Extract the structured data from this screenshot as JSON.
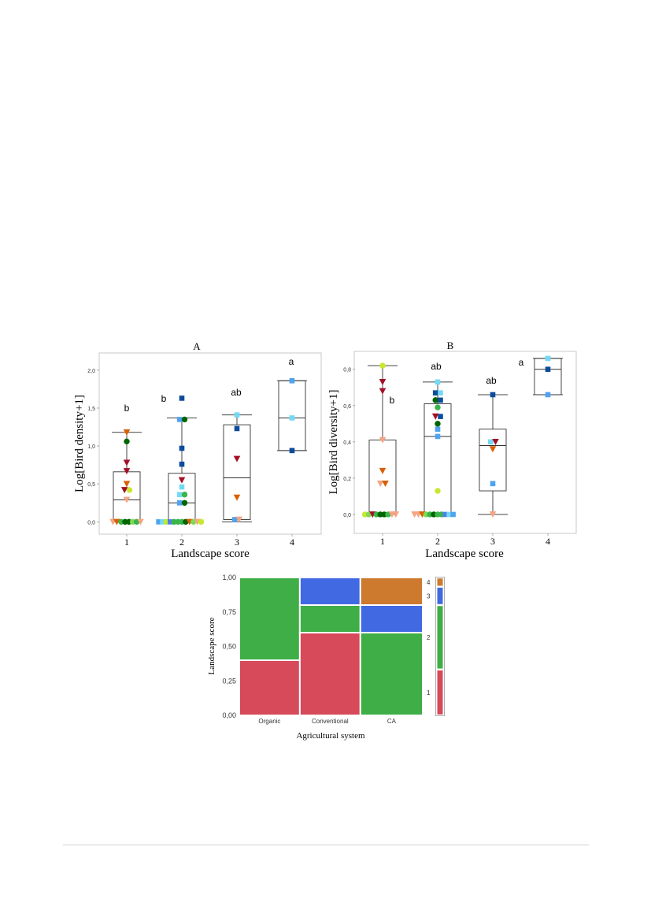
{
  "chart_data": [
    {
      "type": "box",
      "title": "A",
      "xlabel": "Landscape score",
      "ylabel": "Log[Bird density+1]",
      "categories": [
        "1",
        "2",
        "3",
        "4"
      ],
      "ytick_labels": [
        "0,0",
        "0,5",
        "1,0",
        "1,5",
        "2,0"
      ],
      "ylim": [
        -0.1,
        2.05
      ],
      "group_letters": [
        "b",
        "b",
        "ab",
        "a"
      ],
      "boxes": [
        {
          "q1": 0.0,
          "median": 0.29,
          "q3": 0.66,
          "whisker_low": 0.0,
          "whisker_high": 1.18
        },
        {
          "q1": 0.0,
          "median": 0.25,
          "q3": 0.64,
          "whisker_low": 0.0,
          "whisker_high": 1.37
        },
        {
          "q1": 0.03,
          "median": 0.58,
          "q3": 1.28,
          "whisker_low": 0.0,
          "whisker_high": 1.41
        },
        {
          "q1": 0.94,
          "median": 1.37,
          "q3": 1.86,
          "whisker_low": 0.94,
          "whisker_high": 1.86
        }
      ],
      "points": [
        {
          "x": 1,
          "dx": -0.25,
          "y": 0.0,
          "shape": "tri",
          "color": "#f4a582"
        },
        {
          "x": 1,
          "dx": -0.18,
          "y": 0.0,
          "shape": "tri",
          "color": "#d95f02"
        },
        {
          "x": 1,
          "dx": -0.1,
          "y": 0.0,
          "shape": "circle",
          "color": "#39b54a"
        },
        {
          "x": 1,
          "dx": -0.03,
          "y": 0.0,
          "shape": "circle",
          "color": "#006400"
        },
        {
          "x": 1,
          "dx": 0.04,
          "y": 0.0,
          "shape": "circle",
          "color": "#006400"
        },
        {
          "x": 1,
          "dx": 0.11,
          "y": 0.0,
          "shape": "circle",
          "color": "#7ed957"
        },
        {
          "x": 1,
          "dx": 0.18,
          "y": 0.0,
          "shape": "circle",
          "color": "#39b54a"
        },
        {
          "x": 1,
          "dx": 0.25,
          "y": 0.0,
          "shape": "tri",
          "color": "#f4a582"
        },
        {
          "x": 1,
          "dx": 0.0,
          "y": 0.29,
          "shape": "tri",
          "color": "#f4a582"
        },
        {
          "x": 1,
          "dx": -0.04,
          "y": 0.42,
          "shape": "tri",
          "color": "#a50f26"
        },
        {
          "x": 1,
          "dx": 0.05,
          "y": 0.42,
          "shape": "circle",
          "color": "#c6e82e"
        },
        {
          "x": 1,
          "dx": 0.0,
          "y": 0.5,
          "shape": "tri",
          "color": "#d95f02"
        },
        {
          "x": 1,
          "dx": 0.0,
          "y": 0.67,
          "shape": "tri",
          "color": "#a50f26"
        },
        {
          "x": 1,
          "dx": 0.0,
          "y": 0.78,
          "shape": "tri",
          "color": "#a50f26"
        },
        {
          "x": 1,
          "dx": 0.0,
          "y": 1.06,
          "shape": "circle",
          "color": "#006400"
        },
        {
          "x": 1,
          "dx": 0.0,
          "y": 1.18,
          "shape": "tri",
          "color": "#d95f02"
        },
        {
          "x": 2,
          "dx": -0.42,
          "y": 0.0,
          "shape": "square",
          "color": "#4fa3f0"
        },
        {
          "x": 2,
          "dx": -0.35,
          "y": 0.0,
          "shape": "square",
          "color": "#73d9f5"
        },
        {
          "x": 2,
          "dx": -0.28,
          "y": 0.0,
          "shape": "circle",
          "color": "#c6e82e"
        },
        {
          "x": 2,
          "dx": -0.21,
          "y": 0.0,
          "shape": "square",
          "color": "#4f7fe8"
        },
        {
          "x": 2,
          "dx": -0.14,
          "y": 0.0,
          "shape": "circle",
          "color": "#39b54a"
        },
        {
          "x": 2,
          "dx": -0.07,
          "y": 0.0,
          "shape": "circle",
          "color": "#39b54a"
        },
        {
          "x": 2,
          "dx": 0.0,
          "y": 0.0,
          "shape": "circle",
          "color": "#39b54a"
        },
        {
          "x": 2,
          "dx": 0.07,
          "y": 0.0,
          "shape": "circle",
          "color": "#006400"
        },
        {
          "x": 2,
          "dx": 0.14,
          "y": 0.0,
          "shape": "tri",
          "color": "#d95f02"
        },
        {
          "x": 2,
          "dx": 0.21,
          "y": 0.0,
          "shape": "circle",
          "color": "#7ed957"
        },
        {
          "x": 2,
          "dx": 0.28,
          "y": 0.0,
          "shape": "tri",
          "color": "#f4a582"
        },
        {
          "x": 2,
          "dx": 0.35,
          "y": 0.0,
          "shape": "circle",
          "color": "#c6e82e"
        },
        {
          "x": 2,
          "dx": -0.04,
          "y": 0.25,
          "shape": "square",
          "color": "#4fa3f0"
        },
        {
          "x": 2,
          "dx": 0.05,
          "y": 0.25,
          "shape": "circle",
          "color": "#006400"
        },
        {
          "x": 2,
          "dx": -0.04,
          "y": 0.36,
          "shape": "square",
          "color": "#73d9f5"
        },
        {
          "x": 2,
          "dx": 0.05,
          "y": 0.36,
          "shape": "circle",
          "color": "#39b54a"
        },
        {
          "x": 2,
          "dx": 0.0,
          "y": 0.46,
          "shape": "square",
          "color": "#73d9f5"
        },
        {
          "x": 2,
          "dx": 0.0,
          "y": 0.55,
          "shape": "tri",
          "color": "#a50f26"
        },
        {
          "x": 2,
          "dx": 0.0,
          "y": 0.76,
          "shape": "square",
          "color": "#0d4c9c"
        },
        {
          "x": 2,
          "dx": 0.0,
          "y": 0.97,
          "shape": "square",
          "color": "#0d4c9c"
        },
        {
          "x": 2,
          "dx": -0.04,
          "y": 1.35,
          "shape": "square",
          "color": "#4fa3f0"
        },
        {
          "x": 2,
          "dx": 0.05,
          "y": 1.35,
          "shape": "circle",
          "color": "#006400"
        },
        {
          "x": 2,
          "dx": 0.0,
          "y": 1.63,
          "shape": "square",
          "color": "#0d4c9c"
        },
        {
          "x": 3,
          "dx": -0.04,
          "y": 0.03,
          "shape": "square",
          "color": "#4fa3f0"
        },
        {
          "x": 3,
          "dx": 0.04,
          "y": 0.03,
          "shape": "tri",
          "color": "#f4a582"
        },
        {
          "x": 3,
          "dx": 0.0,
          "y": 0.32,
          "shape": "tri",
          "color": "#d95f02"
        },
        {
          "x": 3,
          "dx": 0.0,
          "y": 0.83,
          "shape": "tri",
          "color": "#a50f26"
        },
        {
          "x": 3,
          "dx": 0.0,
          "y": 1.23,
          "shape": "square",
          "color": "#0d4c9c"
        },
        {
          "x": 3,
          "dx": 0.0,
          "y": 1.41,
          "shape": "square",
          "color": "#73d9f5"
        },
        {
          "x": 4,
          "dx": 0.0,
          "y": 0.94,
          "shape": "square",
          "color": "#0d4c9c"
        },
        {
          "x": 4,
          "dx": 0.0,
          "y": 1.37,
          "shape": "square",
          "color": "#73d9f5"
        },
        {
          "x": 4,
          "dx": 0.0,
          "y": 1.86,
          "shape": "square",
          "color": "#4fa3f0"
        }
      ]
    },
    {
      "type": "box",
      "title": "B",
      "xlabel": "Landscape score",
      "ylabel": "Log[Bird diversity+1]",
      "categories": [
        "1",
        "2",
        "3",
        "4"
      ],
      "ytick_labels": [
        "0,0",
        "0,2",
        "0,4",
        "0,6",
        "0,8"
      ],
      "ylim": [
        -0.1,
        0.89
      ],
      "group_letters": [
        "b",
        "ab",
        "ab",
        "a"
      ],
      "boxes": [
        {
          "q1": 0.0,
          "median": 0.0,
          "q3": 0.41,
          "whisker_low": 0.0,
          "whisker_high": 0.82
        },
        {
          "q1": 0.0,
          "median": 0.43,
          "q3": 0.61,
          "whisker_low": 0.0,
          "whisker_high": 0.73
        },
        {
          "q1": 0.13,
          "median": 0.38,
          "q3": 0.47,
          "whisker_low": 0.0,
          "whisker_high": 0.66
        },
        {
          "q1": 0.66,
          "median": 0.8,
          "q3": 0.86,
          "whisker_low": 0.66,
          "whisker_high": 0.86
        }
      ],
      "points": [
        {
          "x": 1,
          "dx": -0.32,
          "y": 0.0,
          "shape": "circle",
          "color": "#c6e82e"
        },
        {
          "x": 1,
          "dx": -0.25,
          "y": 0.0,
          "shape": "circle",
          "color": "#7ed957"
        },
        {
          "x": 1,
          "dx": -0.18,
          "y": 0.0,
          "shape": "tri",
          "color": "#a50f26"
        },
        {
          "x": 1,
          "dx": -0.11,
          "y": 0.0,
          "shape": "circle",
          "color": "#39b54a"
        },
        {
          "x": 1,
          "dx": -0.04,
          "y": 0.0,
          "shape": "circle",
          "color": "#006400"
        },
        {
          "x": 1,
          "dx": 0.03,
          "y": 0.0,
          "shape": "circle",
          "color": "#006400"
        },
        {
          "x": 1,
          "dx": 0.1,
          "y": 0.0,
          "shape": "circle",
          "color": "#39b54a"
        },
        {
          "x": 1,
          "dx": 0.17,
          "y": 0.0,
          "shape": "tri",
          "color": "#f4a582"
        },
        {
          "x": 1,
          "dx": 0.24,
          "y": 0.0,
          "shape": "tri",
          "color": "#f4a582"
        },
        {
          "x": 1,
          "dx": -0.04,
          "y": 0.17,
          "shape": "tri",
          "color": "#f4a582"
        },
        {
          "x": 1,
          "dx": 0.05,
          "y": 0.17,
          "shape": "tri",
          "color": "#d95f02"
        },
        {
          "x": 1,
          "dx": 0.0,
          "y": 0.24,
          "shape": "tri",
          "color": "#d95f02"
        },
        {
          "x": 1,
          "dx": 0.0,
          "y": 0.41,
          "shape": "tri",
          "color": "#f4a582"
        },
        {
          "x": 1,
          "dx": 0.0,
          "y": 0.68,
          "shape": "tri",
          "color": "#a50f26"
        },
        {
          "x": 1,
          "dx": 0.0,
          "y": 0.73,
          "shape": "tri",
          "color": "#a50f26"
        },
        {
          "x": 1,
          "dx": 0.0,
          "y": 0.82,
          "shape": "circle",
          "color": "#c6e82e"
        },
        {
          "x": 2,
          "dx": -0.42,
          "y": 0.0,
          "shape": "tri",
          "color": "#f4a582"
        },
        {
          "x": 2,
          "dx": -0.35,
          "y": 0.0,
          "shape": "tri",
          "color": "#f4a582"
        },
        {
          "x": 2,
          "dx": -0.28,
          "y": 0.0,
          "shape": "tri",
          "color": "#d95f02"
        },
        {
          "x": 2,
          "dx": -0.21,
          "y": 0.0,
          "shape": "circle",
          "color": "#7ed957"
        },
        {
          "x": 2,
          "dx": -0.14,
          "y": 0.0,
          "shape": "circle",
          "color": "#39b54a"
        },
        {
          "x": 2,
          "dx": -0.07,
          "y": 0.0,
          "shape": "circle",
          "color": "#006400"
        },
        {
          "x": 2,
          "dx": 0.0,
          "y": 0.0,
          "shape": "circle",
          "color": "#39b54a"
        },
        {
          "x": 2,
          "dx": 0.07,
          "y": 0.0,
          "shape": "circle",
          "color": "#39b54a"
        },
        {
          "x": 2,
          "dx": 0.14,
          "y": 0.0,
          "shape": "square",
          "color": "#4f7fe8"
        },
        {
          "x": 2,
          "dx": 0.21,
          "y": 0.0,
          "shape": "square",
          "color": "#73d9f5"
        },
        {
          "x": 2,
          "dx": 0.28,
          "y": 0.0,
          "shape": "square",
          "color": "#4fa3f0"
        },
        {
          "x": 2,
          "dx": 0.0,
          "y": 0.13,
          "shape": "circle",
          "color": "#c6e82e"
        },
        {
          "x": 2,
          "dx": 0.0,
          "y": 0.43,
          "shape": "square",
          "color": "#4fa3f0"
        },
        {
          "x": 2,
          "dx": 0.0,
          "y": 0.47,
          "shape": "square",
          "color": "#4fa3f0"
        },
        {
          "x": 2,
          "dx": 0.0,
          "y": 0.5,
          "shape": "circle",
          "color": "#006400"
        },
        {
          "x": 2,
          "dx": -0.04,
          "y": 0.54,
          "shape": "tri",
          "color": "#a50f26"
        },
        {
          "x": 2,
          "dx": 0.05,
          "y": 0.54,
          "shape": "square",
          "color": "#0d4c9c"
        },
        {
          "x": 2,
          "dx": 0.0,
          "y": 0.59,
          "shape": "circle",
          "color": "#39b54a"
        },
        {
          "x": 2,
          "dx": -0.04,
          "y": 0.63,
          "shape": "circle",
          "color": "#006400"
        },
        {
          "x": 2,
          "dx": 0.05,
          "y": 0.63,
          "shape": "square",
          "color": "#0d4c9c"
        },
        {
          "x": 2,
          "dx": -0.04,
          "y": 0.67,
          "shape": "square",
          "color": "#0d4c9c"
        },
        {
          "x": 2,
          "dx": 0.05,
          "y": 0.67,
          "shape": "square",
          "color": "#73d9f5"
        },
        {
          "x": 2,
          "dx": 0.0,
          "y": 0.73,
          "shape": "square",
          "color": "#73d9f5"
        },
        {
          "x": 3,
          "dx": 0.0,
          "y": 0.0,
          "shape": "tri",
          "color": "#f4a582"
        },
        {
          "x": 3,
          "dx": 0.0,
          "y": 0.17,
          "shape": "square",
          "color": "#4fa3f0"
        },
        {
          "x": 3,
          "dx": 0.0,
          "y": 0.36,
          "shape": "tri",
          "color": "#d95f02"
        },
        {
          "x": 3,
          "dx": -0.04,
          "y": 0.4,
          "shape": "square",
          "color": "#73d9f5"
        },
        {
          "x": 3,
          "dx": 0.05,
          "y": 0.4,
          "shape": "tri",
          "color": "#a50f26"
        },
        {
          "x": 3,
          "dx": 0.0,
          "y": 0.66,
          "shape": "square",
          "color": "#0d4c9c"
        },
        {
          "x": 4,
          "dx": 0.0,
          "y": 0.66,
          "shape": "square",
          "color": "#4fa3f0"
        },
        {
          "x": 4,
          "dx": 0.0,
          "y": 0.8,
          "shape": "square",
          "color": "#0d4c9c"
        },
        {
          "x": 4,
          "dx": 0.0,
          "y": 0.86,
          "shape": "square",
          "color": "#73d9f5"
        }
      ]
    },
    {
      "type": "mosaic",
      "xlabel": "Agricultural system",
      "ylabel": "Landscape score",
      "categories": [
        "Organic",
        "Conventional",
        "CA"
      ],
      "widths": [
        0.33,
        0.33,
        0.34
      ],
      "ytick_labels": [
        "0,00",
        "0,25",
        "0,50",
        "0,75",
        "1,00"
      ],
      "series": [
        {
          "name": "1",
          "color": "#d64a5a",
          "values": [
            0.4,
            0.6,
            0.0
          ]
        },
        {
          "name": "2",
          "color": "#3fae46",
          "values": [
            0.6,
            0.2,
            0.6
          ]
        },
        {
          "name": "3",
          "color": "#4169e1",
          "values": [
            0.0,
            0.2,
            0.2
          ]
        },
        {
          "name": "4",
          "color": "#cd7a2e",
          "values": [
            0.0,
            0.0,
            0.2
          ]
        }
      ],
      "legend_bar": [
        0.333,
        0.467,
        0.133,
        0.067
      ]
    }
  ]
}
